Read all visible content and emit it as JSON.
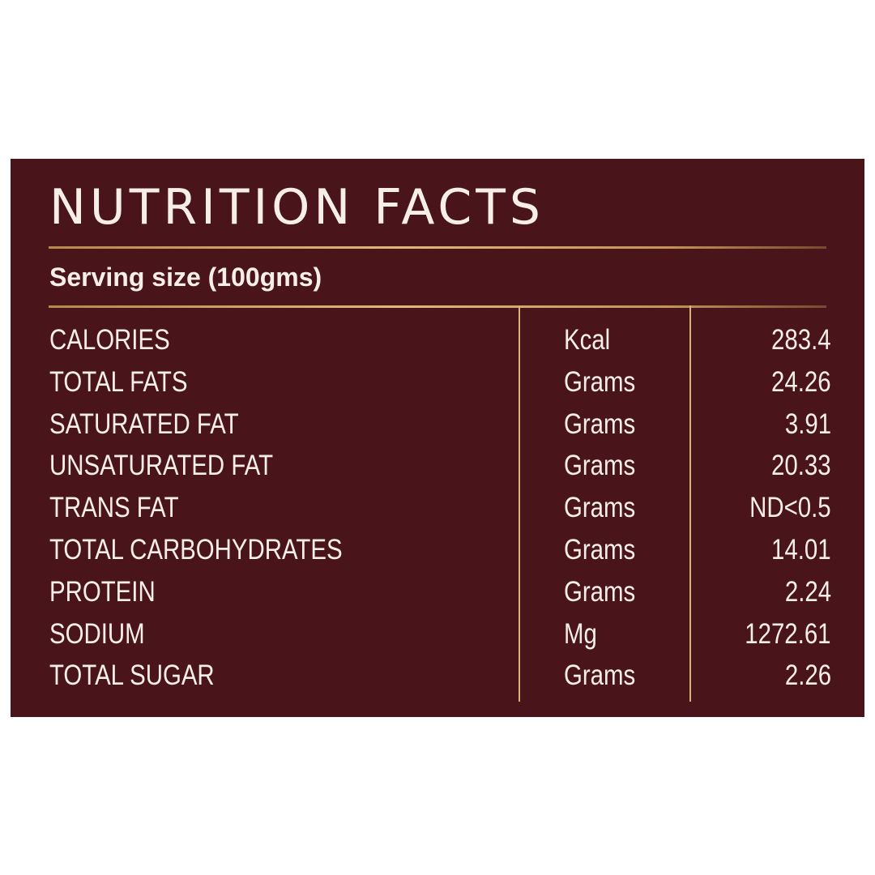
{
  "title": "NUTRITION FACTS",
  "serving": "Serving size (100gms)",
  "colors": {
    "panel": "#4a141b",
    "text": "#f6efe8",
    "rule": "#d9b27a",
    "page": "#ffffff"
  },
  "rows": [
    {
      "nutrient": "CALORIES",
      "unit": "Kcal",
      "value": "283.4"
    },
    {
      "nutrient": "TOTAL FATS",
      "unit": "Grams",
      "value": "24.26"
    },
    {
      "nutrient": "SATURATED FAT",
      "unit": "Grams",
      "value": "3.91"
    },
    {
      "nutrient": "UNSATURATED FAT",
      "unit": "Grams",
      "value": "20.33"
    },
    {
      "nutrient": "TRANS FAT",
      "unit": "Grams",
      "value": "ND<0.5"
    },
    {
      "nutrient": "TOTAL CARBOHYDRATES",
      "unit": "Grams",
      "value": "14.01"
    },
    {
      "nutrient": "PROTEIN",
      "unit": "Grams",
      "value": "2.24"
    },
    {
      "nutrient": "SODIUM",
      "unit": "Mg",
      "value": "1272.61"
    },
    {
      "nutrient": "TOTAL SUGAR",
      "unit": "Grams",
      "value": "2.26"
    }
  ]
}
